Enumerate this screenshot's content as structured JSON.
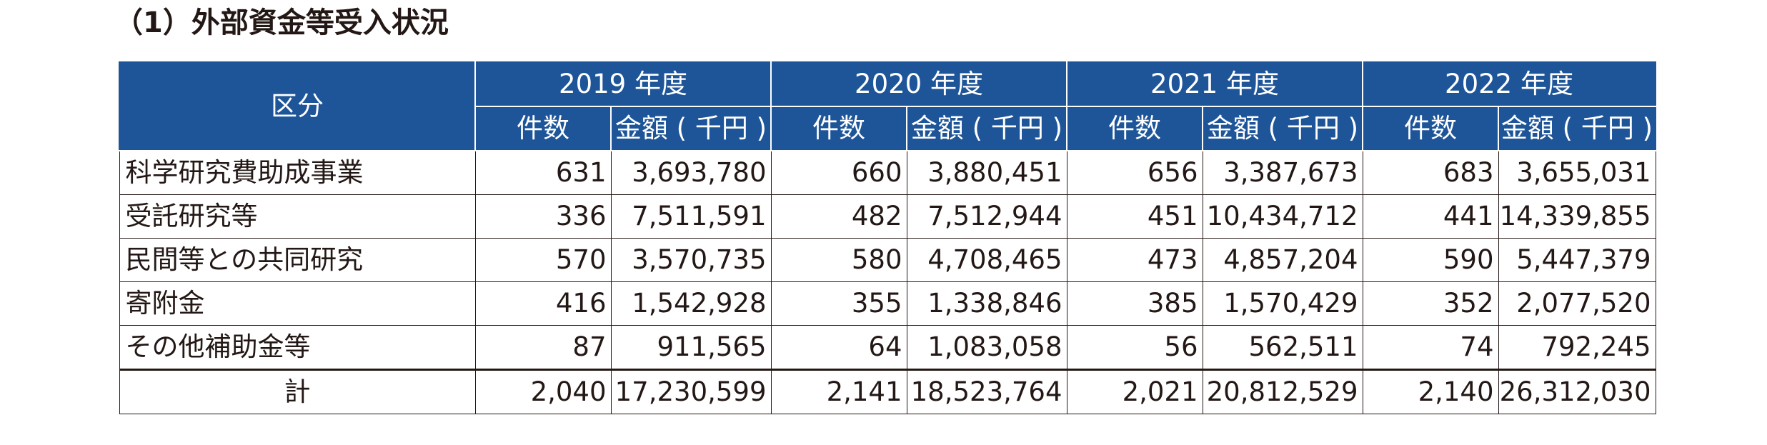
{
  "title": "（1）外部資金等受入状況",
  "table": {
    "category_header": "区分",
    "years": [
      "2019 年度",
      "2020 年度",
      "2021 年度",
      "2022 年度"
    ],
    "sub_headers": {
      "count": "件数",
      "amount": "金額 ( 千円 )"
    },
    "rows": [
      {
        "category": "科学研究費助成事業",
        "cells": [
          "631",
          "3,693,780",
          "660",
          "3,880,451",
          "656",
          "3,387,673",
          "683",
          "3,655,031"
        ]
      },
      {
        "category": "受託研究等",
        "cells": [
          "336",
          "7,511,591",
          "482",
          "7,512,944",
          "451",
          "10,434,712",
          "441",
          "14,339,855"
        ]
      },
      {
        "category": "民間等との共同研究",
        "cells": [
          "570",
          "3,570,735",
          "580",
          "4,708,465",
          "473",
          "4,857,204",
          "590",
          "5,447,379"
        ]
      },
      {
        "category": "寄附金",
        "cells": [
          "416",
          "1,542,928",
          "355",
          "1,338,846",
          "385",
          "1,570,429",
          "352",
          "2,077,520"
        ]
      },
      {
        "category": "その他補助金等",
        "cells": [
          "87",
          "911,565",
          "64",
          "1,083,058",
          "56",
          "562,511",
          "74",
          "792,245"
        ]
      }
    ],
    "total": {
      "category": "計",
      "cells": [
        "2,040",
        "17,230,599",
        "2,141",
        "18,523,764",
        "2,021",
        "20,812,529",
        "2,140",
        "26,312,030"
      ]
    }
  },
  "colors": {
    "header_background": "#1e5599",
    "header_text": "#ffffff",
    "body_text": "#231815"
  }
}
